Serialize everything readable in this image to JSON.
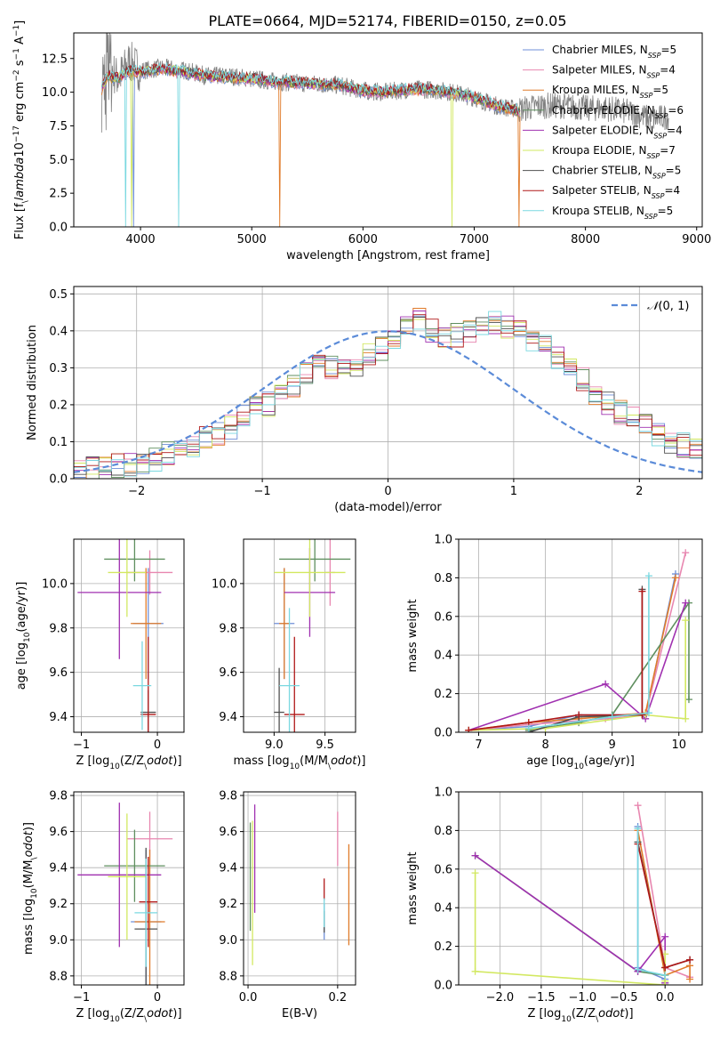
{
  "title": "PLATE=0664, MJD=52174, FIBERID=0150, z=0.05",
  "colors": {
    "Chabrier MILES": "#6f8fd8",
    "Salpeter MILES": "#e887b0",
    "Kroupa MILES": "#e07b2a",
    "Chabrier ELODIE": "#5f8f5f",
    "Salpeter ELODIE": "#a030b0",
    "Kroupa ELODIE": "#d2e860",
    "Chabrier STELIB": "#505050",
    "Salpeter STELIB": "#b01818",
    "Kroupa STELIB": "#7ad8e0",
    "data": "#808080",
    "gaussian": "#5b8bd8"
  },
  "chart_data": [
    {
      "type": "line",
      "name": "spectrum",
      "xlabel": "wavelength [Angstrom, rest frame]",
      "ylabel": "Flux [f$_\\lambda$10$^{-17}$ erg cm$^{-2}$ s$^{-1}$ A$^{-1}$]",
      "xlim": [
        3400,
        9050
      ],
      "ylim": [
        0,
        14.4
      ],
      "xticks": [
        4000,
        5000,
        6000,
        7000,
        8000,
        9000
      ],
      "yticks": [
        0.0,
        2.5,
        5.0,
        7.5,
        10.0,
        12.5
      ],
      "legend_placement": "right",
      "data_series": {
        "name": "data",
        "x": [
          3650,
          3700,
          3800,
          3900,
          4000,
          4200,
          4400,
          4600,
          4800,
          5000,
          5200,
          5400,
          5600,
          5800,
          6000,
          6200,
          6400,
          6600,
          6800,
          7000,
          7200,
          7400,
          7600,
          7800,
          8000,
          8200,
          8400,
          8600,
          8750
        ],
        "y": [
          10.5,
          12.0,
          11.0,
          12.3,
          11.6,
          11.8,
          11.6,
          11.2,
          11.2,
          11.0,
          10.8,
          10.7,
          10.6,
          10.5,
          10.1,
          10.0,
          10.2,
          10.2,
          10.0,
          9.6,
          9.0,
          8.7,
          9.0,
          9.0,
          8.8,
          8.8,
          8.5,
          8.0,
          8.2
        ]
      },
      "model_x": [
        3650,
        3700,
        3800,
        3900,
        4000,
        4200,
        4400,
        4600,
        4800,
        5000,
        5200,
        5400,
        5600,
        5800,
        6000,
        6200,
        6400,
        6600,
        6800,
        7000,
        7200,
        7400
      ],
      "model_y": [
        10.2,
        11.2,
        11.0,
        11.6,
        11.5,
        11.7,
        11.5,
        11.2,
        11.1,
        11.0,
        10.8,
        10.7,
        10.6,
        10.5,
        10.1,
        10.0,
        10.2,
        10.2,
        10.0,
        9.6,
        9.0,
        8.6
      ],
      "legend": [
        {
          "name": "Chabrier MILES",
          "n_ssp": "5"
        },
        {
          "name": "Salpeter MILES",
          "n_ssp": "4"
        },
        {
          "name": "Kroupa MILES",
          "n_ssp": "5"
        },
        {
          "name": "Chabrier ELODIE",
          "n_ssp": "6"
        },
        {
          "name": "Salpeter ELODIE",
          "n_ssp": "4"
        },
        {
          "name": "Kroupa ELODIE",
          "n_ssp": "7"
        },
        {
          "name": "Chabrier STELIB",
          "n_ssp": "5"
        },
        {
          "name": "Salpeter STELIB",
          "n_ssp": "4"
        },
        {
          "name": "Kroupa STELIB",
          "n_ssp": "5"
        }
      ]
    },
    {
      "type": "histogram",
      "name": "residuals",
      "xlabel": "(data-model)/error",
      "ylabel": "Normed distribution",
      "xlim": [
        -2.5,
        2.5
      ],
      "ylim": [
        0,
        0.52
      ],
      "xticks": [
        -2,
        -1,
        0,
        1,
        2
      ],
      "yticks": [
        0.0,
        0.1,
        0.2,
        0.3,
        0.4,
        0.5
      ],
      "grid": true,
      "legend_placement": "top-right",
      "gaussian_label": "$\\mathcal{N}(0,1)$",
      "bin_width": 0.1,
      "bin_start": -2.5,
      "heights": [
        0.02,
        0.025,
        0.03,
        0.035,
        0.035,
        0.045,
        0.055,
        0.065,
        0.08,
        0.09,
        0.11,
        0.12,
        0.14,
        0.17,
        0.19,
        0.2,
        0.22,
        0.25,
        0.28,
        0.3,
        0.3,
        0.31,
        0.3,
        0.34,
        0.35,
        0.38,
        0.42,
        0.43,
        0.4,
        0.38,
        0.39,
        0.4,
        0.41,
        0.42,
        0.41,
        0.4,
        0.37,
        0.36,
        0.33,
        0.3,
        0.27,
        0.23,
        0.2,
        0.18,
        0.16,
        0.14,
        0.12,
        0.1,
        0.09,
        0.08
      ]
    },
    {
      "type": "scatter",
      "name": "Z-age",
      "xlabel": "Z [log$_{10}$(Z/Z$_\\odot$)]",
      "ylabel": "age  [log$_{10}$(age/yr)]",
      "xlim": [
        -1.1,
        0.35
      ],
      "ylim": [
        9.33,
        10.2
      ],
      "xticks": [
        -1,
        0
      ],
      "yticks": [
        9.4,
        9.6,
        9.8,
        10.0
      ],
      "points": [
        {
          "series": "Chabrier MILES",
          "x": -0.12,
          "y": 9.82,
          "xerr": 0.2,
          "yerr": 0.25
        },
        {
          "series": "Salpeter MILES",
          "x": -0.1,
          "y": 10.05,
          "xerr": 0.3,
          "yerr": 0.1
        },
        {
          "series": "Kroupa MILES",
          "x": -0.15,
          "y": 9.82,
          "xerr": 0.2,
          "yerr": 0.25
        },
        {
          "series": "Chabrier ELODIE",
          "x": -0.3,
          "y": 10.11,
          "xerr": 0.4,
          "yerr": 0.1
        },
        {
          "series": "Salpeter ELODIE",
          "x": -0.5,
          "y": 9.96,
          "xerr": 0.55,
          "yerr": 0.3
        },
        {
          "series": "Kroupa ELODIE",
          "x": -0.4,
          "y": 10.05,
          "xerr": 0.25,
          "yerr": 0.2
        },
        {
          "series": "Chabrier STELIB",
          "x": -0.12,
          "y": 9.42,
          "xerr": 0.1,
          "yerr": 0.1
        },
        {
          "series": "Salpeter STELIB",
          "x": -0.12,
          "y": 9.41,
          "xerr": 0.1,
          "yerr": 0.35
        },
        {
          "series": "Kroupa STELIB",
          "x": -0.2,
          "y": 9.54,
          "xerr": 0.12,
          "yerr": 0.2
        }
      ]
    },
    {
      "type": "scatter",
      "name": "mass-age",
      "xlabel": "mass [log$_{10}$(M/M$_\\odot$)]",
      "xlim": [
        8.7,
        9.8
      ],
      "ylim": [
        9.33,
        10.2
      ],
      "xticks": [
        9.0,
        9.5
      ],
      "yticks": [
        9.4,
        9.6,
        9.8,
        10.0
      ],
      "points": [
        {
          "series": "Chabrier MILES",
          "x": 9.1,
          "y": 9.82,
          "xerr": 0.1,
          "yerr": 0.25
        },
        {
          "series": "Salpeter MILES",
          "x": 9.55,
          "y": 10.05,
          "xerr": 0.05,
          "yerr": 0.15
        },
        {
          "series": "Kroupa MILES",
          "x": 9.1,
          "y": 9.82,
          "xerr": 0.05,
          "yerr": 0.25
        },
        {
          "series": "Chabrier ELODIE",
          "x": 9.4,
          "y": 10.11,
          "xerr": 0.35,
          "yerr": 0.1
        },
        {
          "series": "Salpeter ELODIE",
          "x": 9.35,
          "y": 9.96,
          "xerr": 0.25,
          "yerr": 0.2
        },
        {
          "series": "Kroupa ELODIE",
          "x": 9.35,
          "y": 10.05,
          "xerr": 0.35,
          "yerr": 0.2
        },
        {
          "series": "Chabrier STELIB",
          "x": 9.05,
          "y": 9.42,
          "xerr": 0.05,
          "yerr": 0.2
        },
        {
          "series": "Salpeter STELIB",
          "x": 9.2,
          "y": 9.41,
          "xerr": 0.1,
          "yerr": 0.35
        },
        {
          "series": "Kroupa STELIB",
          "x": 9.15,
          "y": 9.54,
          "xerr": 0.1,
          "yerr": 0.35
        }
      ]
    },
    {
      "type": "line",
      "name": "age-weight",
      "xlabel": "age  [log$_{10}$(age/yr)]",
      "ylabel": "mass weight",
      "xlim": [
        6.7,
        10.35
      ],
      "ylim": [
        0,
        1.0
      ],
      "xticks": [
        7,
        8,
        9,
        10
      ],
      "yticks": [
        0.0,
        0.2,
        0.4,
        0.6,
        0.8,
        1.0
      ],
      "series": [
        {
          "name": "Chabrier MILES",
          "x": [
            6.85,
            7.75,
            8.5,
            9.5,
            9.95
          ],
          "y": [
            0.01,
            0.03,
            0.09,
            0.09,
            0.82
          ]
        },
        {
          "name": "Salpeter MILES",
          "x": [
            6.85,
            7.75,
            8.9,
            9.5,
            10.1
          ],
          "y": [
            0.01,
            0.04,
            0.07,
            0.09,
            0.93
          ]
        },
        {
          "name": "Kroupa MILES",
          "x": [
            6.85,
            7.75,
            8.5,
            9.5,
            9.95
          ],
          "y": [
            0.01,
            0.05,
            0.07,
            0.1,
            0.8
          ]
        },
        {
          "name": "Chabrier ELODIE",
          "x": [
            7.75,
            8.5,
            9.0,
            10.15,
            10.15
          ],
          "y": [
            0.01,
            0.05,
            0.09,
            0.67,
            0.17
          ]
        },
        {
          "name": "Salpeter ELODIE",
          "x": [
            6.85,
            8.9,
            9.5,
            10.1
          ],
          "y": [
            0.01,
            0.25,
            0.07,
            0.67
          ]
        },
        {
          "name": "Kroupa ELODIE",
          "x": [
            6.85,
            8.0,
            9.5,
            10.1,
            10.1
          ],
          "y": [
            0.01,
            0.02,
            0.09,
            0.07,
            0.58
          ]
        },
        {
          "name": "Chabrier STELIB",
          "x": [
            7.75,
            8.5,
            9.45,
            9.45
          ],
          "y": [
            0.0,
            0.08,
            0.09,
            0.74
          ]
        },
        {
          "name": "Salpeter STELIB",
          "x": [
            6.85,
            7.75,
            8.5,
            9.45,
            9.45
          ],
          "y": [
            0.01,
            0.05,
            0.09,
            0.09,
            0.73
          ]
        },
        {
          "name": "Kroupa STELIB",
          "x": [
            7.75,
            9.0,
            9.55,
            9.55
          ],
          "y": [
            0.02,
            0.08,
            0.1,
            0.81
          ]
        }
      ]
    },
    {
      "type": "scatter",
      "name": "Z-mass",
      "xlabel": "Z [log$_{10}$(Z/Z$_\\odot$)]",
      "ylabel": "mass [log$_{10}$(M/M$_\\odot$)]",
      "xlim": [
        -1.1,
        0.35
      ],
      "ylim": [
        8.75,
        9.82
      ],
      "xticks": [
        -1,
        0
      ],
      "yticks": [
        8.8,
        9.0,
        9.2,
        9.4,
        9.6,
        9.8
      ],
      "points": [
        {
          "series": "Chabrier MILES",
          "x": -0.15,
          "y": 9.1,
          "xerr": 0.2,
          "yerr": 0.4
        },
        {
          "series": "Salpeter MILES",
          "x": -0.1,
          "y": 9.56,
          "xerr": 0.3,
          "yerr": 0.15
        },
        {
          "series": "Kroupa MILES",
          "x": -0.1,
          "y": 9.1,
          "xerr": 0.2,
          "yerr": 0.4
        },
        {
          "series": "Chabrier ELODIE",
          "x": -0.3,
          "y": 9.41,
          "xerr": 0.4,
          "yerr": 0.2
        },
        {
          "series": "Salpeter ELODIE",
          "x": -0.5,
          "y": 9.36,
          "xerr": 0.55,
          "yerr": 0.4
        },
        {
          "series": "Kroupa ELODIE",
          "x": -0.4,
          "y": 9.35,
          "xerr": 0.25,
          "yerr": 0.35
        },
        {
          "series": "Chabrier STELIB",
          "x": -0.15,
          "y": 9.06,
          "xerr": 0.15,
          "yerr": 0.45
        },
        {
          "series": "Salpeter STELIB",
          "x": -0.12,
          "y": 9.21,
          "xerr": 0.12,
          "yerr": 0.25
        },
        {
          "series": "Kroupa STELIB",
          "x": -0.15,
          "y": 9.15,
          "xerr": 0.15,
          "yerr": 0.3
        }
      ]
    },
    {
      "type": "scatter",
      "name": "EBV-mass",
      "xlabel": "E(B-V)",
      "xlim": [
        -0.01,
        0.24
      ],
      "ylim": [
        8.75,
        9.82
      ],
      "xticks": [
        0.0,
        0.2
      ],
      "yticks": [
        8.8,
        9.0,
        9.2,
        9.4,
        9.6,
        9.8
      ],
      "points": [
        {
          "series": "Chabrier MILES",
          "x": 0.17,
          "y": 9.1,
          "xerr": 0,
          "yerr": 0.1
        },
        {
          "series": "Salpeter MILES",
          "x": 0.2,
          "y": 9.56,
          "xerr": 0,
          "yerr": 0.15
        },
        {
          "series": "Kroupa MILES",
          "x": 0.225,
          "y": 9.25,
          "xerr": 0,
          "yerr": 0.28
        },
        {
          "series": "Chabrier ELODIE",
          "x": 0.005,
          "y": 9.35,
          "xerr": 0,
          "yerr": 0.3
        },
        {
          "series": "Salpeter ELODIE",
          "x": 0.015,
          "y": 9.45,
          "xerr": 0,
          "yerr": 0.3
        },
        {
          "series": "Kroupa ELODIE",
          "x": 0.01,
          "y": 9.26,
          "xerr": 0,
          "yerr": 0.4
        },
        {
          "series": "Chabrier STELIB",
          "x": 0.17,
          "y": 9.1,
          "xerr": 0,
          "yerr": 0.06
        },
        {
          "series": "Salpeter STELIB",
          "x": 0.17,
          "y": 9.28,
          "xerr": 0,
          "yerr": 0.06
        },
        {
          "series": "Kroupa STELIB",
          "x": 0.17,
          "y": 9.15,
          "xerr": 0,
          "yerr": 0.08
        }
      ]
    },
    {
      "type": "line",
      "name": "Z-weight",
      "xlabel": "Z [log$_{10}$(Z/Z$_\\odot$)]",
      "ylabel": "mass weight",
      "xlim": [
        -2.5,
        0.45
      ],
      "ylim": [
        0,
        1.0
      ],
      "xticks": [
        -2.0,
        -1.5,
        -1.0,
        -0.5,
        0.0
      ],
      "yticks": [
        0.0,
        0.2,
        0.4,
        0.6,
        0.8,
        1.0
      ],
      "series": [
        {
          "name": "Chabrier MILES",
          "x": [
            -0.33,
            -0.33,
            0.0,
            0.0
          ],
          "y": [
            0.82,
            0.09,
            0.03,
            0.01
          ]
        },
        {
          "name": "Salpeter MILES",
          "x": [
            -0.33,
            0.0,
            0.3
          ],
          "y": [
            0.93,
            0.09,
            0.04
          ]
        },
        {
          "name": "Kroupa MILES",
          "x": [
            -0.33,
            0.0,
            0.3,
            0.3
          ],
          "y": [
            0.8,
            0.05,
            0.1,
            0.03
          ]
        },
        {
          "name": "Chabrier ELODIE",
          "x": [
            -2.3,
            -0.33,
            0.0,
            0.0
          ],
          "y": [
            0.67,
            0.07,
            0.05,
            0.0
          ]
        },
        {
          "name": "Salpeter ELODIE",
          "x": [
            -2.3,
            -0.33,
            0.0,
            0.0
          ],
          "y": [
            0.67,
            0.07,
            0.25,
            0.01
          ]
        },
        {
          "name": "Kroupa ELODIE",
          "x": [
            -2.3,
            -2.3,
            0.0,
            0.0,
            0.0
          ],
          "y": [
            0.58,
            0.07,
            0.0,
            0.02,
            0.16
          ]
        },
        {
          "name": "Chabrier STELIB",
          "x": [
            -0.33,
            0.0,
            0.3
          ],
          "y": [
            0.74,
            0.09,
            0.13
          ]
        },
        {
          "name": "Salpeter STELIB",
          "x": [
            -0.33,
            0.0,
            0.3
          ],
          "y": [
            0.73,
            0.09,
            0.13
          ]
        },
        {
          "name": "Kroupa STELIB",
          "x": [
            -0.33,
            -0.33,
            0.0
          ],
          "y": [
            0.81,
            0.08,
            0.05
          ]
        }
      ]
    }
  ]
}
